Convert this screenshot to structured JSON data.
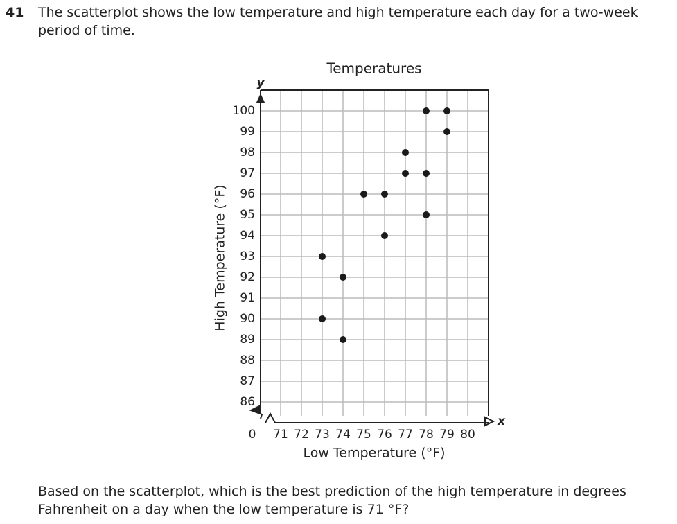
{
  "question": {
    "number": "41",
    "text": "The scatterplot shows the low temperature and high temperature each day for a two-week period of time.",
    "prompt": "Based on the scatterplot, which is the best prediction of the high temperature in degrees Fahrenheit on a day when the low temperature is 71 °F?"
  },
  "chart_data": {
    "type": "scatter",
    "title": "Temperatures",
    "x_label": "Low Temperature (°F)",
    "y_label": "High Temperature (°F)",
    "x_axis_letter": "x",
    "y_axis_letter": "y",
    "origin": 0,
    "x": [
      73,
      73,
      74,
      74,
      75,
      76,
      76,
      77,
      77,
      78,
      78,
      78,
      79,
      79
    ],
    "values": [
      93,
      90,
      92,
      89,
      96,
      96,
      94,
      98,
      97,
      100,
      97,
      95,
      100,
      99
    ],
    "color": "#1a1a1a",
    "grid": true,
    "xlim": [
      70,
      81
    ],
    "ylim": [
      85.5,
      101
    ],
    "xticks": [
      71,
      72,
      73,
      74,
      75,
      76,
      77,
      78,
      79,
      80
    ],
    "yticks": [
      86,
      87,
      88,
      89,
      90,
      91,
      92,
      93,
      94,
      95,
      96,
      97,
      98,
      99,
      100
    ]
  }
}
